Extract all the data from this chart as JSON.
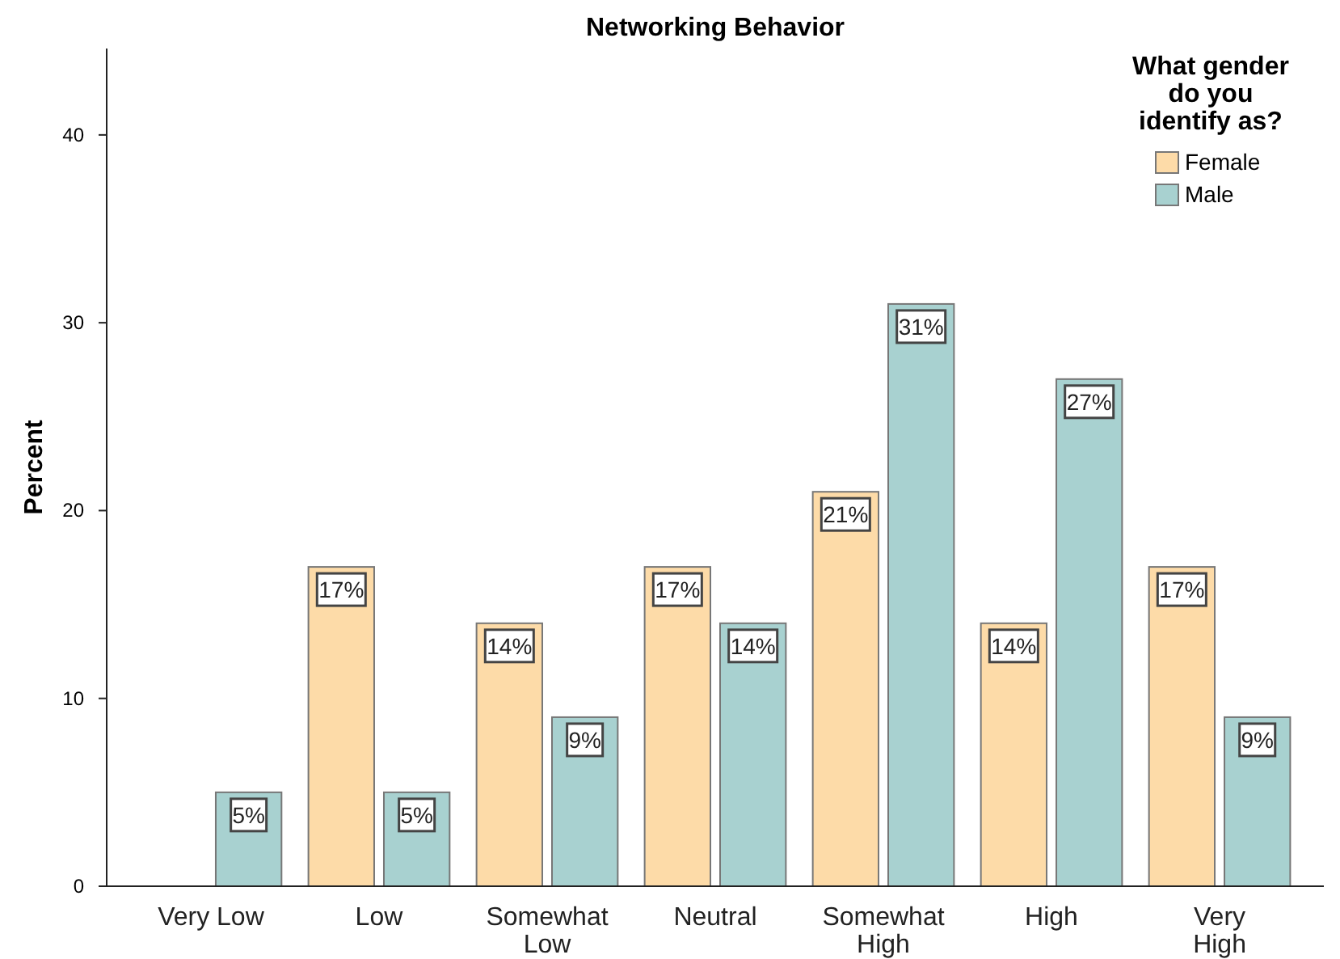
{
  "chart_data": {
    "type": "bar",
    "title": "Networking Behavior",
    "ylabel": "Percent",
    "legend_title": "What gender do you identify as?",
    "categories": [
      "Very Low",
      "Low",
      "Somewhat Low",
      "Neutral",
      "Somewhat High",
      "High",
      "Very High"
    ],
    "series": [
      {
        "name": "Female",
        "color": "#fddba8",
        "values": [
          null,
          17,
          14,
          17,
          21,
          14,
          17
        ],
        "value_labels": [
          null,
          "17%",
          "14%",
          "17%",
          "21%",
          "14%",
          "17%"
        ]
      },
      {
        "name": "Male",
        "color": "#a8d1d0",
        "values": [
          5,
          5,
          9,
          14,
          31,
          27,
          9
        ],
        "value_labels": [
          "5%",
          "5%",
          "9%",
          "14%",
          "31%",
          "27%",
          "9%"
        ]
      }
    ],
    "ylim": [
      0,
      44.6
    ],
    "yticks": [
      0,
      10,
      20,
      30,
      40
    ],
    "grid": false,
    "legend": "top right"
  }
}
